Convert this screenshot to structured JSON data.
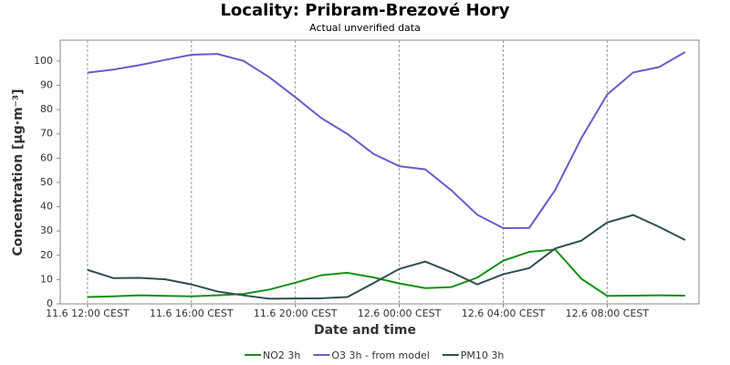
{
  "chart_data": {
    "type": "line",
    "title": "Locality: Pribram-Brezové Hory",
    "subtitle": "Actual unverified data",
    "x_label": "Date and time",
    "y_label": "Concentration [µg·m⁻³]",
    "x": [
      "11.6 12:00 CEST",
      "11.6 13:00 CEST",
      "11.6 14:00 CEST",
      "11.6 15:00 CEST",
      "11.6 16:00 CEST",
      "11.6 17:00 CEST",
      "11.6 18:00 CEST",
      "11.6 19:00 CEST",
      "11.6 20:00 CEST",
      "11.6 21:00 CEST",
      "11.6 22:00 CEST",
      "11.6 23:00 CEST",
      "12.6 00:00 CEST",
      "12.6 01:00 CEST",
      "12.6 02:00 CEST",
      "12.6 03:00 CEST",
      "12.6 04:00 CEST",
      "12.6 05:00 CEST",
      "12.6 06:00 CEST",
      "12.6 07:00 CEST",
      "12.6 08:00 CEST",
      "12.6 09:00 CEST",
      "12.6 10:00 CEST",
      "12.6 11:00 CEST"
    ],
    "series": [
      {
        "name": "NO2 3h",
        "color": "#149014",
        "values": [
          2.8,
          3.1,
          3.5,
          3.3,
          3.1,
          3.5,
          4.1,
          5.9,
          8.7,
          11.8,
          12.8,
          10.9,
          8.4,
          6.5,
          6.9,
          10.8,
          17.8,
          21.4,
          22.4,
          10.4,
          3.3,
          3.4,
          3.5,
          3.4
        ]
      },
      {
        "name": "O3 3h - from model",
        "color": "#6a5acd",
        "values": [
          95.2,
          96.5,
          98.3,
          100.5,
          102.6,
          102.9,
          100.1,
          93.3,
          85.1,
          76.5,
          70,
          61.8,
          56.7,
          55.4,
          46.8,
          36.7,
          31.2,
          31.3,
          46.9,
          68.1,
          86.2,
          95.3,
          97.5,
          103.7
        ]
      },
      {
        "name": "PM10 3h",
        "color": "#2f4f4f",
        "values": [
          14,
          10.6,
          10.7,
          10.1,
          8,
          5.1,
          3.5,
          2.1,
          2.2,
          2.3,
          2.8,
          8.5,
          14.4,
          17.4,
          13.1,
          8,
          12.2,
          14.7,
          22.8,
          26,
          33.5,
          36.6,
          31.7,
          26.3
        ]
      }
    ],
    "xlim": [
      "11.6 10:57 CEST",
      "12.6 11:32 CEST"
    ],
    "xticks": [
      "11.6 12:00 CEST",
      "11.6 16:00 CEST",
      "11.6 20:00 CEST",
      "12.6 00:00 CEST",
      "12.6 04:00 CEST",
      "12.6 08:00 CEST"
    ],
    "ylim": [
      0,
      108.6
    ],
    "yticks": [
      0,
      10,
      20,
      30,
      40,
      50,
      60,
      70,
      80,
      90,
      100
    ],
    "grid": true
  }
}
